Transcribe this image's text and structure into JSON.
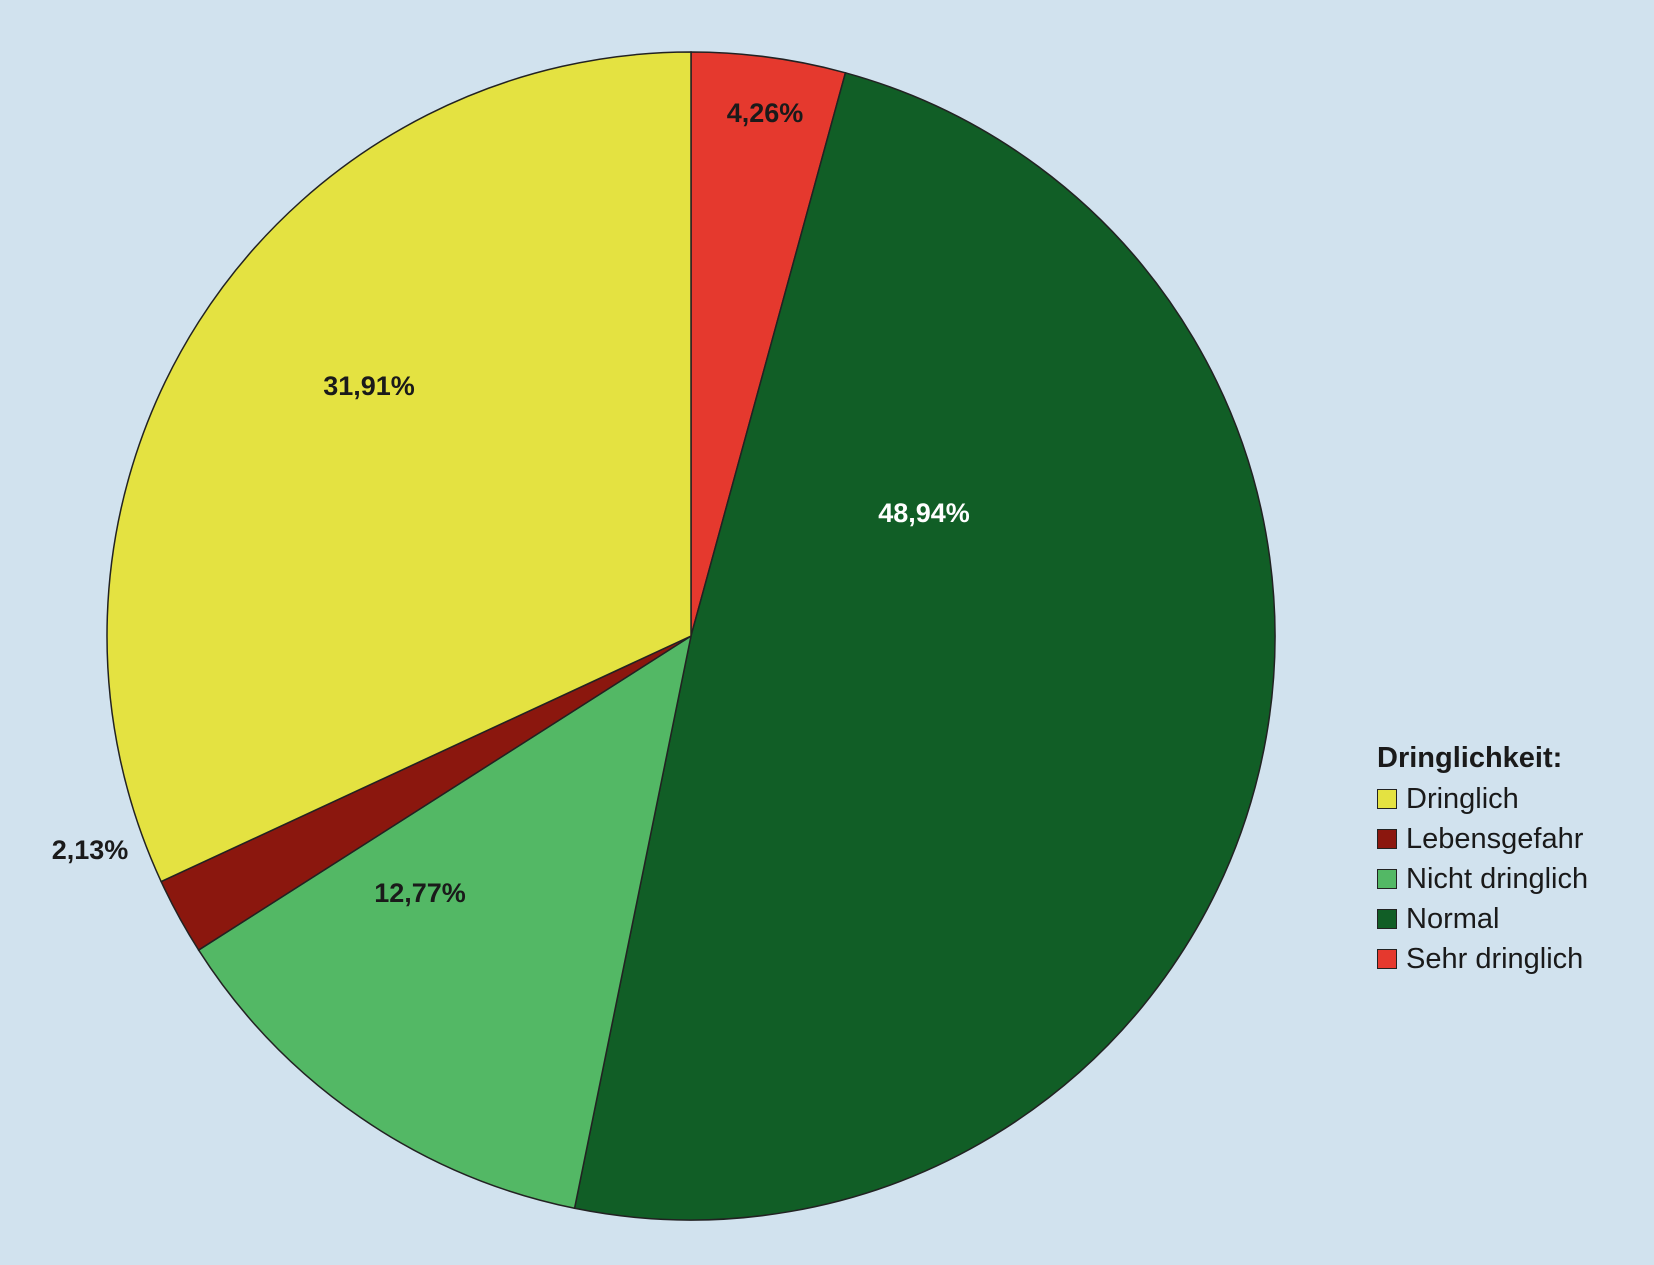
{
  "chart_data": {
    "type": "pie",
    "start": "top",
    "direction": "clockwise",
    "slices": [
      {
        "name": "Sehr dringlich",
        "value": 4.26,
        "label": "4,26%",
        "color": "#e5392e",
        "label_color": "#1a1a1a"
      },
      {
        "name": "Normal",
        "value": 48.94,
        "label": "48,94%",
        "color": "#115e26",
        "label_color": "#ffffff"
      },
      {
        "name": "Nicht dringlich",
        "value": 12.77,
        "label": "12,77%",
        "color": "#53b865",
        "label_color": "#1a1a1a"
      },
      {
        "name": "Lebensgefahr",
        "value": 2.13,
        "label": "2,13%",
        "color": "#8b170e",
        "label_color": "#1a1a1a"
      },
      {
        "name": "Dringlich",
        "value": 31.91,
        "label": "31,91%",
        "color": "#e4e241",
        "label_color": "#1a1a1a"
      }
    ],
    "legend": {
      "title": "Dringlichkeit:",
      "placement": "right",
      "items": [
        {
          "label": "Dringlich",
          "color": "#e4e241"
        },
        {
          "label": "Lebensgefahr",
          "color": "#8b170e"
        },
        {
          "label": "Nicht dringlich",
          "color": "#53b865"
        },
        {
          "label": "Normal",
          "color": "#115e26"
        },
        {
          "label": "Sehr dringlich",
          "color": "#e5392e"
        }
      ]
    }
  }
}
